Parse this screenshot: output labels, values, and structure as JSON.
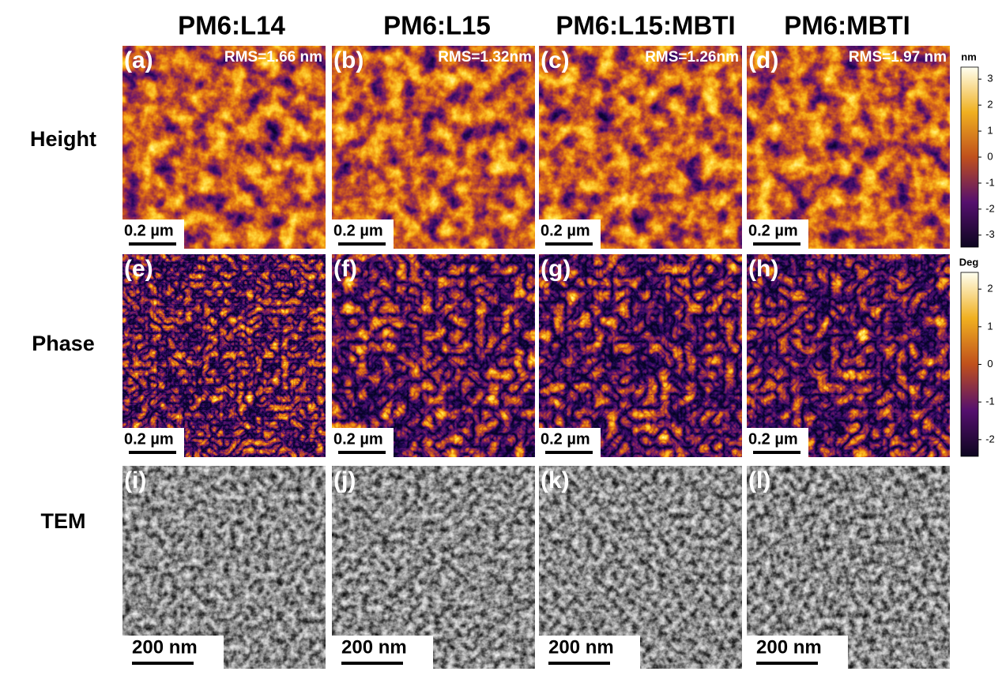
{
  "columns": [
    {
      "title": "PM6:L14"
    },
    {
      "title": "PM6:L15"
    },
    {
      "title": "PM6:L15:MBTI"
    },
    {
      "title": "PM6:MBTI"
    }
  ],
  "rows": [
    {
      "label": "Height"
    },
    {
      "label": "Phase"
    },
    {
      "label": "TEM"
    }
  ],
  "panels": [
    {
      "label": "(a)",
      "rms": "RMS=1.66 nm",
      "scale_bar": "0.2 µm"
    },
    {
      "label": "(b)",
      "rms": "RMS=1.32nm",
      "scale_bar": "0.2 µm"
    },
    {
      "label": "(c)",
      "rms": "RMS=1.26nm",
      "scale_bar": "0.2 µm"
    },
    {
      "label": "(d)",
      "rms": "RMS=1.97 nm",
      "scale_bar": "0.2 µm"
    },
    {
      "label": "(e)",
      "scale_bar": "0.2 µm"
    },
    {
      "label": "(f)",
      "scale_bar": "0.2 µm"
    },
    {
      "label": "(g)",
      "scale_bar": "0.2 µm"
    },
    {
      "label": "(h)",
      "scale_bar": "0.2 µm"
    },
    {
      "label": "(i)",
      "scale_bar": "200 nm"
    },
    {
      "label": "(j)",
      "scale_bar": "200 nm"
    },
    {
      "label": "(k)",
      "scale_bar": "200 nm"
    },
    {
      "label": "(l)",
      "scale_bar": "200 nm"
    }
  ],
  "colorbars": [
    {
      "unit": "nm",
      "ticks": [
        3,
        2,
        1,
        0,
        -1,
        -2,
        -3
      ]
    },
    {
      "unit": "Deg",
      "ticks": [
        2,
        1,
        0,
        -1,
        -2
      ]
    }
  ]
}
